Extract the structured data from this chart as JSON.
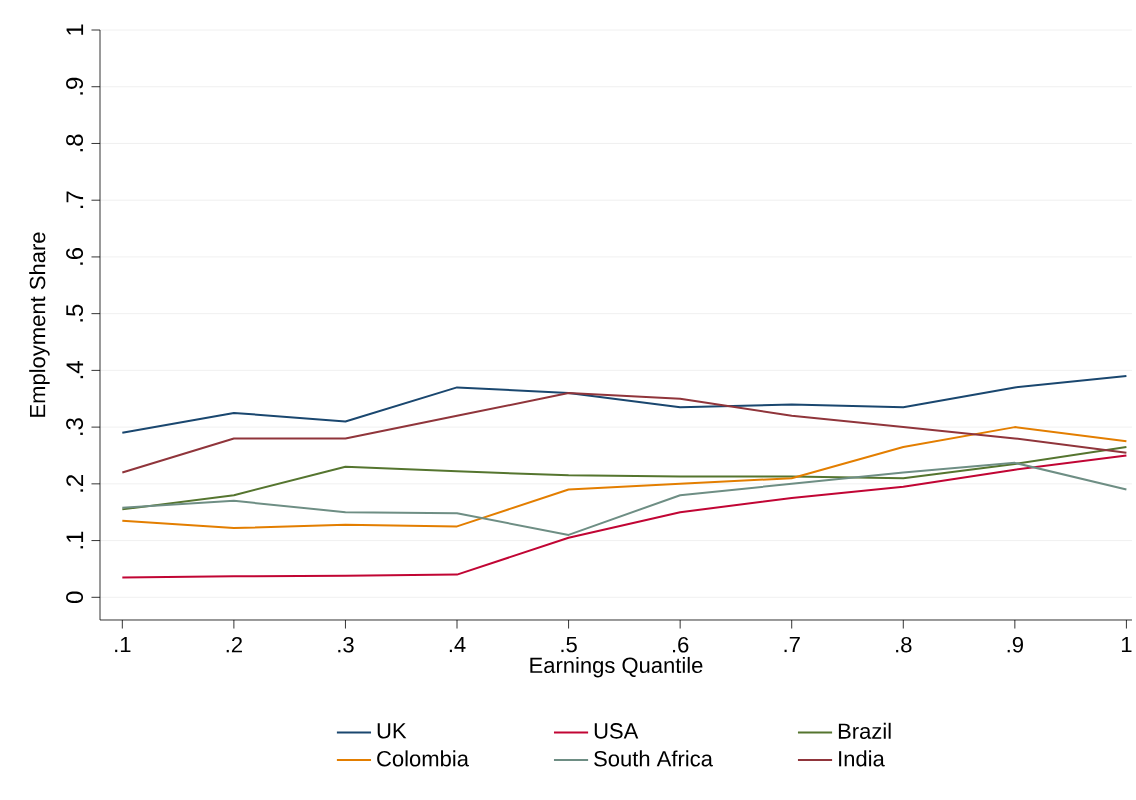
{
  "chart_data": {
    "type": "line",
    "xlabel": "Earnings Quantile",
    "ylabel": "Employment Share",
    "x": [
      0.1,
      0.2,
      0.3,
      0.4,
      0.5,
      0.6,
      0.7,
      0.8,
      0.9,
      1
    ],
    "series": [
      {
        "name": "UK",
        "color": "#1a476f",
        "values": [
          0.29,
          0.325,
          0.31,
          0.37,
          0.36,
          0.335,
          0.34,
          0.335,
          0.37,
          0.39
        ]
      },
      {
        "name": "USA",
        "color": "#c10534",
        "values": [
          0.035,
          0.037,
          0.038,
          0.04,
          0.105,
          0.15,
          0.175,
          0.195,
          0.225,
          0.25
        ]
      },
      {
        "name": "Brazil",
        "color": "#55752f",
        "values": [
          0.155,
          0.18,
          0.23,
          0.222,
          0.215,
          0.213,
          0.213,
          0.21,
          0.235,
          0.265
        ]
      },
      {
        "name": "Colombia",
        "color": "#e37e00",
        "values": [
          0.135,
          0.122,
          0.128,
          0.125,
          0.19,
          0.2,
          0.21,
          0.265,
          0.3,
          0.275
        ]
      },
      {
        "name": "South Africa",
        "color": "#6e8e84",
        "values": [
          0.158,
          0.17,
          0.15,
          0.148,
          0.11,
          0.18,
          0.2,
          0.22,
          0.237,
          0.19
        ]
      },
      {
        "name": "India",
        "color": "#90353b",
        "values": [
          0.22,
          0.28,
          0.28,
          0.32,
          0.36,
          0.35,
          0.32,
          0.3,
          0.28,
          0.255
        ]
      }
    ],
    "xlim": [
      0.08,
      1.005
    ],
    "ylim": [
      -0.04,
      1.0
    ],
    "xticks": [
      {
        "value": 0.1,
        "label": ".1"
      },
      {
        "value": 0.2,
        "label": ".2"
      },
      {
        "value": 0.3,
        "label": ".3"
      },
      {
        "value": 0.4,
        "label": ".4"
      },
      {
        "value": 0.5,
        "label": ".5"
      },
      {
        "value": 0.6,
        "label": ".6"
      },
      {
        "value": 0.7,
        "label": ".7"
      },
      {
        "value": 0.8,
        "label": ".8"
      },
      {
        "value": 0.9,
        "label": ".9"
      },
      1
    ],
    "yticks": [
      0,
      {
        "value": 0.1,
        "label": ".1"
      },
      {
        "value": 0.2,
        "label": ".2"
      },
      {
        "value": 0.3,
        "label": ".3"
      },
      {
        "value": 0.4,
        "label": ".4"
      },
      {
        "value": 0.5,
        "label": ".5"
      },
      {
        "value": 0.6,
        "label": ".6"
      },
      {
        "value": 0.7,
        "label": ".7"
      },
      {
        "value": 0.8,
        "label": ".8"
      },
      {
        "value": 0.9,
        "label": ".9"
      },
      1
    ],
    "grid": "y",
    "legend": "bottom"
  }
}
